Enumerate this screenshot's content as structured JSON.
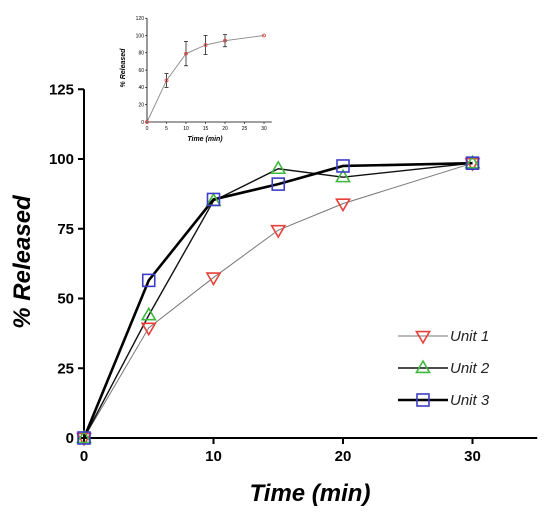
{
  "chart_data": [
    {
      "type": "line",
      "title": "",
      "xlabel": "Time (min)",
      "ylabel": "% Released",
      "xlim": [
        0,
        35
      ],
      "ylim": [
        0,
        125
      ],
      "xticks": [
        0,
        10,
        20,
        30
      ],
      "yticks": [
        0,
        25,
        50,
        75,
        100,
        125
      ],
      "grid": false,
      "legend_position": "bottom-right",
      "series": [
        {
          "name": "Unit 1",
          "marker": "triangle-down",
          "marker_color": "#e8413a",
          "line_color": "#777777",
          "points": [
            [
              0,
              0
            ],
            [
              5,
              39.5
            ],
            [
              10,
              57.5
            ],
            [
              15,
              74.5
            ],
            [
              20,
              84
            ],
            [
              30,
              98.5
            ]
          ]
        },
        {
          "name": "Unit 2",
          "marker": "triangle-up",
          "marker_color": "#3fb83f",
          "line_color": "#111111",
          "points": [
            [
              0,
              0
            ],
            [
              5,
              44
            ],
            [
              10,
              85
            ],
            [
              15,
              96.5
            ],
            [
              20,
              93.5
            ],
            [
              30,
              98.5
            ]
          ]
        },
        {
          "name": "Unit 3",
          "marker": "square",
          "marker_color": "#3c3cc8",
          "line_color": "#000000",
          "points": [
            [
              0,
              0
            ],
            [
              5,
              56.5
            ],
            [
              10,
              85.5
            ],
            [
              15,
              91
            ],
            [
              20,
              97.5
            ],
            [
              30,
              98.5
            ]
          ]
        }
      ]
    },
    {
      "type": "line",
      "title": "",
      "xlabel": "Time (min)",
      "ylabel": "% Released",
      "xlim": [
        0,
        32
      ],
      "ylim": [
        0,
        120
      ],
      "xticks": [
        0,
        5,
        10,
        15,
        20,
        25,
        30
      ],
      "yticks": [
        0,
        20,
        40,
        60,
        80,
        100,
        120
      ],
      "grid": false,
      "series": [
        {
          "marker": "circle",
          "marker_color": "#e8413a",
          "line_color": "#888888",
          "points": [
            [
              0,
              0
            ],
            [
              5,
              48
            ],
            [
              10,
              79
            ],
            [
              15,
              89
            ],
            [
              20,
              94
            ],
            [
              30,
              100
            ]
          ],
          "error": [
            0,
            8,
            14,
            11,
            7,
            0
          ]
        }
      ]
    }
  ]
}
